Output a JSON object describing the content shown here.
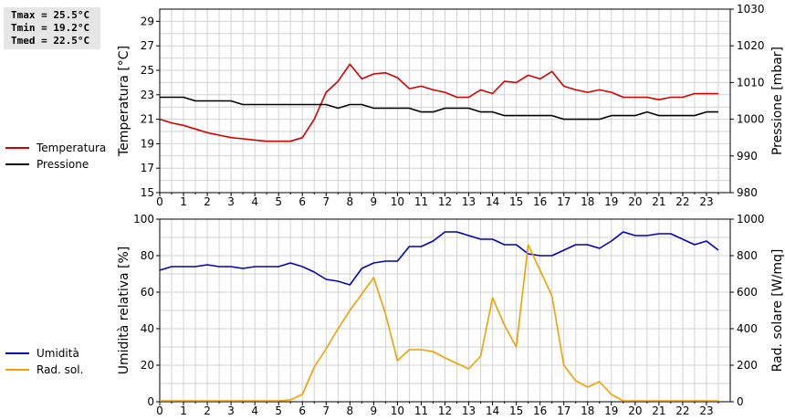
{
  "stats": {
    "tmax": "Tmax = 25.5°C",
    "tmin": "Tmin = 19.2°C",
    "tmed": "Tmed = 22.5°C"
  },
  "chart_data": [
    {
      "type": "line",
      "ylabel": "Temperatura [°C]",
      "y2label": "Pressione [mbar]",
      "ylim": [
        15,
        30
      ],
      "y2lim": [
        980,
        1030
      ],
      "yticks": [
        15,
        17,
        19,
        21,
        23,
        25,
        27,
        29
      ],
      "y2ticks": [
        980,
        990,
        1000,
        1010,
        1020,
        1030
      ],
      "xlim": [
        0,
        24
      ],
      "xticks": [
        "0",
        "1",
        "2",
        "3",
        "4",
        "5",
        "6",
        "7",
        "8",
        "9",
        "10",
        "11",
        "12",
        "13",
        "14",
        "15",
        "16",
        "17",
        "18",
        "19",
        "20",
        "21",
        "22",
        "23"
      ],
      "grid": true,
      "legend": "left",
      "series": [
        {
          "name": "Temperatura",
          "axis": "left",
          "color": "#d40000",
          "x": [
            0,
            0.5,
            1,
            1.5,
            2,
            2.5,
            3,
            3.5,
            4,
            4.5,
            5,
            5.5,
            6,
            6.5,
            7,
            7.5,
            8,
            8.5,
            9,
            9.5,
            10,
            10.5,
            11,
            11.5,
            12,
            12.5,
            13,
            13.5,
            14,
            14.5,
            15,
            15.5,
            16,
            16.5,
            17,
            17.5,
            18,
            18.5,
            19,
            19.5,
            20,
            20.5,
            21,
            21.5,
            22,
            22.5,
            23,
            23.5
          ],
          "y": [
            21.0,
            20.7,
            20.5,
            20.2,
            19.9,
            19.7,
            19.5,
            19.4,
            19.3,
            19.2,
            19.2,
            19.2,
            19.5,
            21.0,
            23.2,
            24.1,
            25.5,
            24.3,
            24.7,
            24.8,
            24.4,
            23.5,
            23.7,
            23.4,
            23.2,
            22.8,
            22.8,
            23.4,
            23.1,
            24.1,
            24.0,
            24.6,
            24.3,
            24.9,
            23.7,
            23.4,
            23.2,
            23.4,
            23.2,
            22.8,
            22.8,
            22.8,
            22.6,
            22.8,
            22.8,
            23.1,
            23.1,
            23.1
          ]
        },
        {
          "name": "Pressione",
          "axis": "right",
          "color": "#000000",
          "x": [
            0,
            0.5,
            1,
            1.5,
            2,
            2.5,
            3,
            3.5,
            4,
            4.5,
            5,
            5.5,
            6,
            6.5,
            7,
            7.5,
            8,
            8.5,
            9,
            9.5,
            10,
            10.5,
            11,
            11.5,
            12,
            12.5,
            13,
            13.5,
            14,
            14.5,
            15,
            15.5,
            16,
            16.5,
            17,
            17.5,
            18,
            18.5,
            19,
            19.5,
            20,
            20.5,
            21,
            21.5,
            22,
            22.5,
            23,
            23.5
          ],
          "y": [
            1006,
            1006,
            1006,
            1005,
            1005,
            1005,
            1005,
            1004,
            1004,
            1004,
            1004,
            1004,
            1004,
            1004,
            1004,
            1003,
            1004,
            1004,
            1003,
            1003,
            1003,
            1003,
            1002,
            1002,
            1003,
            1003,
            1003,
            1002,
            1002,
            1001,
            1001,
            1001,
            1001,
            1001,
            1000,
            1000,
            1000,
            1000,
            1001,
            1001,
            1001,
            1002,
            1001,
            1001,
            1001,
            1001,
            1002,
            1002
          ]
        }
      ]
    },
    {
      "type": "line",
      "ylabel": "Umidità relativa [%]",
      "y2label": "Rad. solare [W/mq]",
      "ylim": [
        0,
        100
      ],
      "y2lim": [
        0,
        1000
      ],
      "yticks": [
        0,
        20,
        40,
        60,
        80,
        100
      ],
      "y2ticks": [
        0,
        200,
        400,
        600,
        800,
        1000
      ],
      "xlim": [
        0,
        24
      ],
      "xticks": [
        "0",
        "1",
        "2",
        "3",
        "4",
        "5",
        "6",
        "7",
        "8",
        "9",
        "10",
        "11",
        "12",
        "13",
        "14",
        "15",
        "16",
        "17",
        "18",
        "19",
        "20",
        "21",
        "22",
        "23"
      ],
      "grid": true,
      "legend": "left",
      "series": [
        {
          "name": "Umidità",
          "axis": "left",
          "color": "#0000c0",
          "x": [
            0,
            0.5,
            1,
            1.5,
            2,
            2.5,
            3,
            3.5,
            4,
            4.5,
            5,
            5.5,
            6,
            6.5,
            7,
            7.5,
            8,
            8.5,
            9,
            9.5,
            10,
            10.5,
            11,
            11.5,
            12,
            12.5,
            13,
            13.5,
            14,
            14.5,
            15,
            15.5,
            16,
            16.5,
            17,
            17.5,
            18,
            18.5,
            19,
            19.5,
            20,
            20.5,
            21,
            21.5,
            22,
            22.5,
            23,
            23.5
          ],
          "y": [
            72,
            74,
            74,
            74,
            75,
            74,
            74,
            73,
            74,
            74,
            74,
            76,
            74,
            71,
            67,
            66,
            64,
            73,
            76,
            77,
            77,
            85,
            85,
            88,
            93,
            93,
            91,
            89,
            89,
            86,
            86,
            81,
            80,
            80,
            83,
            86,
            86,
            84,
            88,
            93,
            91,
            91,
            92,
            92,
            89,
            86,
            88,
            83
          ]
        },
        {
          "name": "Rad. sol.",
          "axis": "right",
          "color": "#f0a000",
          "x": [
            0,
            0.5,
            1,
            1.5,
            2,
            2.5,
            3,
            3.5,
            4,
            4.5,
            5,
            5.5,
            6,
            6.5,
            7,
            7.5,
            8,
            8.5,
            9,
            9.5,
            10,
            10.5,
            11,
            11.5,
            12,
            12.5,
            13,
            13.5,
            14,
            14.5,
            15,
            15.5,
            16,
            16.5,
            17,
            17.5,
            18,
            18.5,
            19,
            19.5,
            20,
            20.5,
            21,
            21.5,
            22,
            22.5,
            23,
            23.5
          ],
          "y": [
            5,
            5,
            5,
            5,
            5,
            5,
            5,
            5,
            5,
            5,
            5,
            10,
            40,
            190,
            290,
            400,
            500,
            590,
            680,
            480,
            225,
            285,
            285,
            275,
            240,
            210,
            180,
            250,
            570,
            420,
            300,
            860,
            720,
            580,
            200,
            115,
            80,
            110,
            40,
            5,
            5,
            5,
            5,
            5,
            5,
            5,
            5,
            5
          ]
        }
      ]
    }
  ]
}
